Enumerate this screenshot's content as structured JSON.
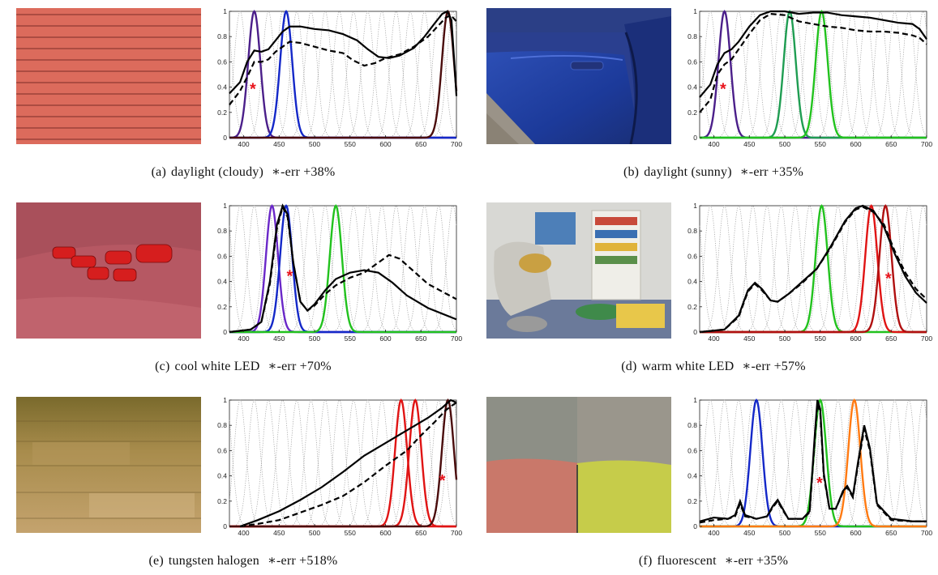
{
  "colors": {
    "violet": "#4b1f8a",
    "blue": "#1428c8",
    "darkred": "#4a0c0c",
    "green": "#22c21e",
    "seagreen": "#1f9d52",
    "red": "#e01414",
    "crimson": "#b01010",
    "orange": "#ff7a12",
    "purple": "#6a28c8",
    "star": "#e8141c"
  },
  "axis": {
    "x_ticks": [
      "400",
      "450",
      "500",
      "550",
      "600",
      "650",
      "700"
    ],
    "y_ticks": [
      "0",
      "0.2",
      "0.4",
      "0.6",
      "0.8",
      "1"
    ],
    "x_range": [
      380,
      700
    ],
    "y_range": [
      0,
      1
    ]
  },
  "panels": [
    {
      "label": "(a)",
      "illuminant": "daylight (cloudy)",
      "err_label": "∗-err +38%",
      "photo": "red-wooden-siding",
      "peaks": [
        {
          "mu": 415,
          "color": "violet"
        },
        {
          "mu": 460,
          "color": "blue"
        },
        {
          "mu": 688,
          "color": "darkred"
        }
      ],
      "star": {
        "x": 413,
        "y": 0.38
      },
      "solid": [
        [
          380,
          0.35
        ],
        [
          395,
          0.44
        ],
        [
          405,
          0.6
        ],
        [
          415,
          0.69
        ],
        [
          425,
          0.68
        ],
        [
          435,
          0.7
        ],
        [
          445,
          0.77
        ],
        [
          455,
          0.84
        ],
        [
          465,
          0.88
        ],
        [
          480,
          0.88
        ],
        [
          500,
          0.86
        ],
        [
          520,
          0.85
        ],
        [
          540,
          0.82
        ],
        [
          560,
          0.77
        ],
        [
          575,
          0.7
        ],
        [
          590,
          0.64
        ],
        [
          605,
          0.63
        ],
        [
          620,
          0.65
        ],
        [
          640,
          0.71
        ],
        [
          655,
          0.8
        ],
        [
          670,
          0.91
        ],
        [
          680,
          0.98
        ],
        [
          687,
          1.0
        ],
        [
          693,
          0.93
        ],
        [
          697,
          0.6
        ],
        [
          700,
          0.33
        ]
      ],
      "dashed": [
        [
          380,
          0.26
        ],
        [
          395,
          0.37
        ],
        [
          405,
          0.48
        ],
        [
          415,
          0.6
        ],
        [
          425,
          0.6
        ],
        [
          435,
          0.62
        ],
        [
          445,
          0.68
        ],
        [
          455,
          0.72
        ],
        [
          465,
          0.76
        ],
        [
          480,
          0.75
        ],
        [
          500,
          0.72
        ],
        [
          520,
          0.69
        ],
        [
          540,
          0.67
        ],
        [
          555,
          0.61
        ],
        [
          570,
          0.57
        ],
        [
          585,
          0.59
        ],
        [
          600,
          0.63
        ],
        [
          620,
          0.66
        ],
        [
          640,
          0.72
        ],
        [
          660,
          0.8
        ],
        [
          675,
          0.89
        ],
        [
          685,
          0.95
        ],
        [
          692,
          0.97
        ],
        [
          700,
          0.92
        ]
      ]
    },
    {
      "label": "(b)",
      "illuminant": "daylight (sunny)",
      "err_label": "∗-err +35%",
      "photo": "blue-car-door",
      "peaks": [
        {
          "mu": 415,
          "color": "violet"
        },
        {
          "mu": 507,
          "color": "seagreen"
        },
        {
          "mu": 552,
          "color": "green"
        }
      ],
      "star": {
        "x": 413,
        "y": 0.38
      },
      "solid": [
        [
          380,
          0.32
        ],
        [
          395,
          0.42
        ],
        [
          405,
          0.58
        ],
        [
          415,
          0.67
        ],
        [
          425,
          0.7
        ],
        [
          435,
          0.76
        ],
        [
          450,
          0.88
        ],
        [
          465,
          0.97
        ],
        [
          480,
          1.0
        ],
        [
          500,
          1.0
        ],
        [
          520,
          0.98
        ],
        [
          540,
          0.99
        ],
        [
          560,
          0.99
        ],
        [
          580,
          0.97
        ],
        [
          600,
          0.96
        ],
        [
          620,
          0.95
        ],
        [
          640,
          0.93
        ],
        [
          660,
          0.91
        ],
        [
          680,
          0.9
        ],
        [
          690,
          0.86
        ],
        [
          700,
          0.78
        ]
      ],
      "dashed": [
        [
          380,
          0.2
        ],
        [
          395,
          0.3
        ],
        [
          405,
          0.5
        ],
        [
          415,
          0.58
        ],
        [
          425,
          0.62
        ],
        [
          435,
          0.7
        ],
        [
          450,
          0.82
        ],
        [
          465,
          0.93
        ],
        [
          480,
          0.98
        ],
        [
          500,
          0.97
        ],
        [
          520,
          0.92
        ],
        [
          540,
          0.9
        ],
        [
          560,
          0.88
        ],
        [
          580,
          0.87
        ],
        [
          600,
          0.85
        ],
        [
          620,
          0.84
        ],
        [
          640,
          0.84
        ],
        [
          660,
          0.83
        ],
        [
          680,
          0.81
        ],
        [
          690,
          0.79
        ],
        [
          700,
          0.74
        ]
      ]
    },
    {
      "label": "(c)",
      "illuminant": "cool white LED",
      "err_label": "∗-err +70%",
      "photo": "toy-cars-on-towel",
      "peaks": [
        {
          "mu": 440,
          "color": "purple"
        },
        {
          "mu": 460,
          "color": "blue"
        },
        {
          "mu": 530,
          "color": "green"
        }
      ],
      "star": {
        "x": 465,
        "y": 0.44
      },
      "solid": [
        [
          380,
          0.0
        ],
        [
          410,
          0.02
        ],
        [
          425,
          0.08
        ],
        [
          437,
          0.4
        ],
        [
          447,
          0.85
        ],
        [
          455,
          1.0
        ],
        [
          462,
          0.93
        ],
        [
          470,
          0.55
        ],
        [
          480,
          0.24
        ],
        [
          490,
          0.17
        ],
        [
          500,
          0.22
        ],
        [
          515,
          0.33
        ],
        [
          530,
          0.42
        ],
        [
          550,
          0.47
        ],
        [
          570,
          0.49
        ],
        [
          590,
          0.47
        ],
        [
          610,
          0.39
        ],
        [
          630,
          0.29
        ],
        [
          660,
          0.19
        ],
        [
          700,
          0.1
        ]
      ],
      "dashed": [
        [
          380,
          0.0
        ],
        [
          410,
          0.02
        ],
        [
          425,
          0.08
        ],
        [
          437,
          0.38
        ],
        [
          447,
          0.82
        ],
        [
          455,
          0.99
        ],
        [
          462,
          0.91
        ],
        [
          470,
          0.55
        ],
        [
          480,
          0.24
        ],
        [
          490,
          0.17
        ],
        [
          500,
          0.21
        ],
        [
          515,
          0.3
        ],
        [
          530,
          0.37
        ],
        [
          550,
          0.43
        ],
        [
          570,
          0.47
        ],
        [
          590,
          0.55
        ],
        [
          605,
          0.61
        ],
        [
          620,
          0.58
        ],
        [
          640,
          0.48
        ],
        [
          660,
          0.38
        ],
        [
          700,
          0.26
        ]
      ]
    },
    {
      "label": "(d)",
      "illuminant": "warm white LED",
      "err_label": "∗-err +57%",
      "photo": "toy-room-chair",
      "peaks": [
        {
          "mu": 552,
          "color": "green"
        },
        {
          "mu": 622,
          "color": "red"
        },
        {
          "mu": 642,
          "color": "crimson"
        }
      ],
      "star": {
        "x": 646,
        "y": 0.42
      },
      "solid": [
        [
          380,
          0.0
        ],
        [
          415,
          0.02
        ],
        [
          435,
          0.13
        ],
        [
          448,
          0.33
        ],
        [
          458,
          0.39
        ],
        [
          468,
          0.34
        ],
        [
          480,
          0.25
        ],
        [
          490,
          0.24
        ],
        [
          505,
          0.3
        ],
        [
          525,
          0.4
        ],
        [
          545,
          0.5
        ],
        [
          565,
          0.68
        ],
        [
          585,
          0.88
        ],
        [
          600,
          0.98
        ],
        [
          610,
          1.0
        ],
        [
          625,
          0.96
        ],
        [
          640,
          0.83
        ],
        [
          655,
          0.62
        ],
        [
          670,
          0.44
        ],
        [
          685,
          0.31
        ],
        [
          700,
          0.23
        ]
      ],
      "dashed": [
        [
          380,
          0.0
        ],
        [
          415,
          0.02
        ],
        [
          435,
          0.12
        ],
        [
          448,
          0.32
        ],
        [
          458,
          0.38
        ],
        [
          468,
          0.33
        ],
        [
          480,
          0.25
        ],
        [
          490,
          0.24
        ],
        [
          505,
          0.3
        ],
        [
          525,
          0.39
        ],
        [
          545,
          0.5
        ],
        [
          565,
          0.67
        ],
        [
          585,
          0.87
        ],
        [
          600,
          0.97
        ],
        [
          610,
          0.99
        ],
        [
          625,
          0.95
        ],
        [
          640,
          0.85
        ],
        [
          655,
          0.64
        ],
        [
          670,
          0.47
        ],
        [
          685,
          0.34
        ],
        [
          700,
          0.26
        ]
      ]
    },
    {
      "label": "(e)",
      "illuminant": "tungsten halogen",
      "err_label": "∗-err +518%",
      "photo": "oak-wood-floor",
      "peaks": [
        {
          "mu": 622,
          "color": "red"
        },
        {
          "mu": 642,
          "color": "red"
        },
        {
          "mu": 688,
          "color": "darkred"
        }
      ],
      "star": {
        "x": 680,
        "y": 0.36
      },
      "solid": [
        [
          395,
          0.0
        ],
        [
          420,
          0.05
        ],
        [
          450,
          0.12
        ],
        [
          480,
          0.21
        ],
        [
          510,
          0.31
        ],
        [
          540,
          0.43
        ],
        [
          570,
          0.56
        ],
        [
          600,
          0.66
        ],
        [
          630,
          0.76
        ],
        [
          660,
          0.86
        ],
        [
          680,
          0.94
        ],
        [
          688,
          0.98
        ],
        [
          692,
          1.0
        ],
        [
          700,
          0.98
        ]
      ],
      "dashed": [
        [
          395,
          0.0
        ],
        [
          420,
          0.02
        ],
        [
          450,
          0.05
        ],
        [
          480,
          0.11
        ],
        [
          510,
          0.17
        ],
        [
          540,
          0.24
        ],
        [
          570,
          0.35
        ],
        [
          600,
          0.48
        ],
        [
          630,
          0.6
        ],
        [
          650,
          0.72
        ],
        [
          670,
          0.83
        ],
        [
          685,
          0.92
        ],
        [
          692,
          0.95
        ],
        [
          700,
          0.98
        ]
      ]
    },
    {
      "label": "(f)",
      "illuminant": "fluorescent",
      "err_label": "∗-err +35%",
      "photo": "sofa-cushions",
      "peaks": [
        {
          "mu": 460,
          "color": "blue"
        },
        {
          "mu": 550,
          "color": "green"
        },
        {
          "mu": 598,
          "color": "orange"
        }
      ],
      "star": {
        "x": 549,
        "y": 0.34
      },
      "solid": [
        [
          380,
          0.04
        ],
        [
          400,
          0.07
        ],
        [
          420,
          0.06
        ],
        [
          430,
          0.09
        ],
        [
          437,
          0.2
        ],
        [
          444,
          0.09
        ],
        [
          460,
          0.06
        ],
        [
          475,
          0.08
        ],
        [
          483,
          0.16
        ],
        [
          490,
          0.21
        ],
        [
          497,
          0.14
        ],
        [
          505,
          0.06
        ],
        [
          525,
          0.06
        ],
        [
          535,
          0.12
        ],
        [
          542,
          0.7
        ],
        [
          546,
          1.0
        ],
        [
          550,
          0.93
        ],
        [
          555,
          0.42
        ],
        [
          563,
          0.14
        ],
        [
          572,
          0.14
        ],
        [
          582,
          0.28
        ],
        [
          588,
          0.32
        ],
        [
          596,
          0.24
        ],
        [
          603,
          0.5
        ],
        [
          612,
          0.8
        ],
        [
          620,
          0.62
        ],
        [
          630,
          0.18
        ],
        [
          650,
          0.06
        ],
        [
          680,
          0.04
        ],
        [
          700,
          0.04
        ]
      ],
      "dashed": [
        [
          380,
          0.03
        ],
        [
          400,
          0.05
        ],
        [
          420,
          0.06
        ],
        [
          430,
          0.08
        ],
        [
          437,
          0.18
        ],
        [
          444,
          0.08
        ],
        [
          460,
          0.06
        ],
        [
          475,
          0.08
        ],
        [
          483,
          0.15
        ],
        [
          490,
          0.2
        ],
        [
          497,
          0.13
        ],
        [
          505,
          0.06
        ],
        [
          525,
          0.06
        ],
        [
          535,
          0.11
        ],
        [
          542,
          0.66
        ],
        [
          546,
          0.97
        ],
        [
          550,
          0.9
        ],
        [
          555,
          0.4
        ],
        [
          563,
          0.14
        ],
        [
          572,
          0.14
        ],
        [
          582,
          0.27
        ],
        [
          588,
          0.31
        ],
        [
          596,
          0.23
        ],
        [
          603,
          0.48
        ],
        [
          612,
          0.77
        ],
        [
          620,
          0.6
        ],
        [
          630,
          0.17
        ],
        [
          650,
          0.05
        ],
        [
          680,
          0.04
        ],
        [
          700,
          0.04
        ]
      ]
    }
  ]
}
